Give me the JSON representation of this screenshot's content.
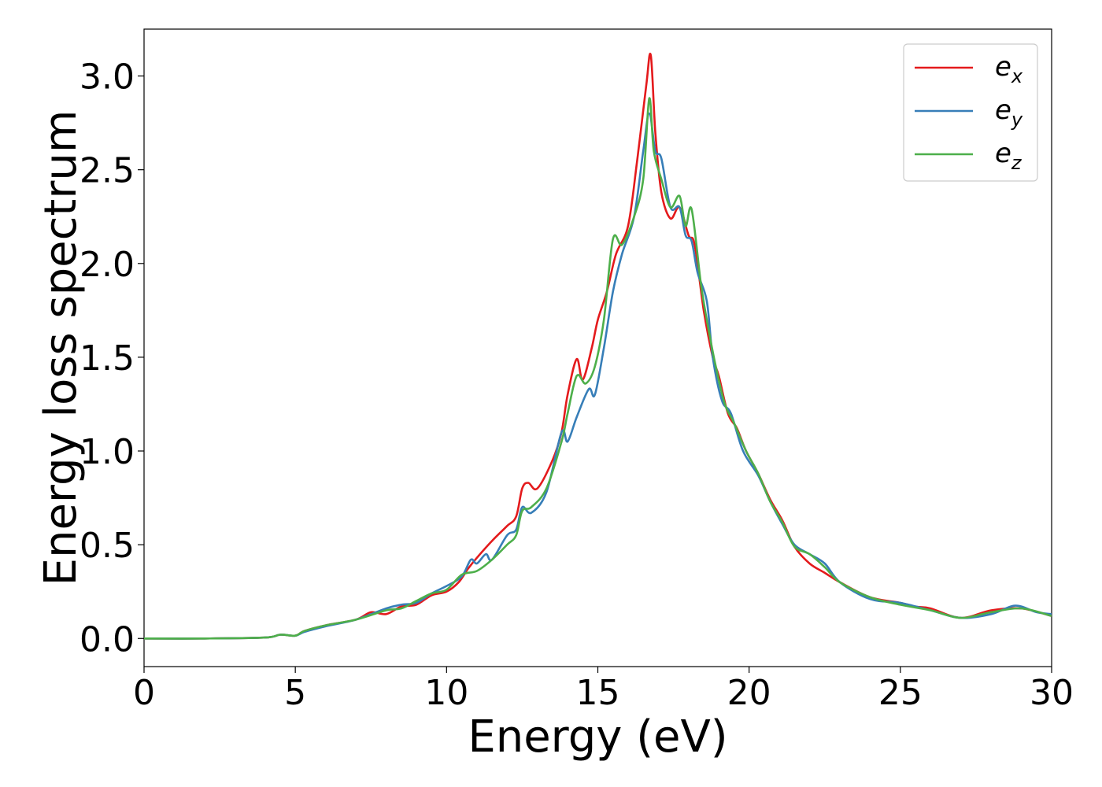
{
  "chart_data": {
    "type": "line",
    "title": "",
    "xlabel": "Energy (eV)",
    "ylabel": "Energy loss spectrum",
    "xlim": [
      0,
      30
    ],
    "ylim": [
      -0.15,
      3.25
    ],
    "xticks": [
      0,
      5,
      10,
      15,
      20,
      25,
      30
    ],
    "xtick_labels": [
      "0",
      "5",
      "10",
      "15",
      "20",
      "25",
      "30"
    ],
    "yticks": [
      0.0,
      0.5,
      1.0,
      1.5,
      2.0,
      2.5,
      3.0
    ],
    "ytick_labels": [
      "0.0",
      "0.5",
      "1.0",
      "1.5",
      "2.0",
      "2.5",
      "3.0"
    ],
    "grid": false,
    "legend": {
      "position": "top-right"
    },
    "series": [
      {
        "name": "e_x",
        "label_base": "e",
        "label_sub": "x",
        "color": "#e41a1c",
        "points": [
          [
            0,
            0
          ],
          [
            2,
            0
          ],
          [
            4,
            0.005
          ],
          [
            4.5,
            0.02
          ],
          [
            5,
            0.015
          ],
          [
            5.3,
            0.04
          ],
          [
            6,
            0.07
          ],
          [
            7,
            0.1
          ],
          [
            7.5,
            0.14
          ],
          [
            8,
            0.13
          ],
          [
            8.5,
            0.17
          ],
          [
            9,
            0.18
          ],
          [
            9.5,
            0.23
          ],
          [
            10,
            0.25
          ],
          [
            10.4,
            0.3
          ],
          [
            10.7,
            0.37
          ],
          [
            11,
            0.43
          ],
          [
            11.5,
            0.52
          ],
          [
            12,
            0.6
          ],
          [
            12.3,
            0.65
          ],
          [
            12.5,
            0.8
          ],
          [
            12.7,
            0.83
          ],
          [
            13,
            0.8
          ],
          [
            13.5,
            0.95
          ],
          [
            13.8,
            1.1
          ],
          [
            14,
            1.3
          ],
          [
            14.3,
            1.49
          ],
          [
            14.5,
            1.38
          ],
          [
            14.8,
            1.55
          ],
          [
            15,
            1.7
          ],
          [
            15.3,
            1.85
          ],
          [
            15.6,
            2.05
          ],
          [
            16,
            2.2
          ],
          [
            16.3,
            2.55
          ],
          [
            16.6,
            2.95
          ],
          [
            16.75,
            3.11
          ],
          [
            16.9,
            2.7
          ],
          [
            17.1,
            2.38
          ],
          [
            17.4,
            2.24
          ],
          [
            17.7,
            2.3
          ],
          [
            18,
            2.15
          ],
          [
            18.2,
            2.1
          ],
          [
            18.5,
            1.75
          ],
          [
            18.8,
            1.5
          ],
          [
            19,
            1.4
          ],
          [
            19.3,
            1.2
          ],
          [
            19.6,
            1.12
          ],
          [
            19.9,
            1.0
          ],
          [
            20.3,
            0.88
          ],
          [
            20.7,
            0.74
          ],
          [
            21.1,
            0.63
          ],
          [
            21.5,
            0.49
          ],
          [
            22,
            0.4
          ],
          [
            22.5,
            0.35
          ],
          [
            23,
            0.3
          ],
          [
            24,
            0.22
          ],
          [
            25,
            0.19
          ],
          [
            25.5,
            0.17
          ],
          [
            26,
            0.16
          ],
          [
            27,
            0.11
          ],
          [
            28,
            0.15
          ],
          [
            29,
            0.16
          ],
          [
            30,
            0.12
          ]
        ]
      },
      {
        "name": "e_y",
        "label_base": "e",
        "label_sub": "y",
        "color": "#377eb8",
        "points": [
          [
            0,
            0
          ],
          [
            2,
            0
          ],
          [
            4,
            0.005
          ],
          [
            4.5,
            0.02
          ],
          [
            5,
            0.015
          ],
          [
            5.3,
            0.035
          ],
          [
            6,
            0.065
          ],
          [
            7,
            0.1
          ],
          [
            8,
            0.16
          ],
          [
            8.5,
            0.18
          ],
          [
            9,
            0.19
          ],
          [
            9.5,
            0.24
          ],
          [
            10,
            0.28
          ],
          [
            10.5,
            0.33
          ],
          [
            10.8,
            0.42
          ],
          [
            11,
            0.4
          ],
          [
            11.3,
            0.45
          ],
          [
            11.5,
            0.42
          ],
          [
            12,
            0.55
          ],
          [
            12.3,
            0.58
          ],
          [
            12.5,
            0.7
          ],
          [
            12.8,
            0.67
          ],
          [
            13.3,
            0.78
          ],
          [
            13.8,
            1.1
          ],
          [
            14,
            1.05
          ],
          [
            14.3,
            1.18
          ],
          [
            14.7,
            1.33
          ],
          [
            14.9,
            1.3
          ],
          [
            15.2,
            1.55
          ],
          [
            15.5,
            1.85
          ],
          [
            15.8,
            2.05
          ],
          [
            16.2,
            2.25
          ],
          [
            16.5,
            2.6
          ],
          [
            16.7,
            2.8
          ],
          [
            16.9,
            2.6
          ],
          [
            17.1,
            2.56
          ],
          [
            17.4,
            2.3
          ],
          [
            17.7,
            2.3
          ],
          [
            17.9,
            2.15
          ],
          [
            18.1,
            2.12
          ],
          [
            18.3,
            1.95
          ],
          [
            18.6,
            1.8
          ],
          [
            18.8,
            1.5
          ],
          [
            19.1,
            1.27
          ],
          [
            19.4,
            1.2
          ],
          [
            19.8,
            1.0
          ],
          [
            20.3,
            0.87
          ],
          [
            20.7,
            0.73
          ],
          [
            21.1,
            0.61
          ],
          [
            21.5,
            0.5
          ],
          [
            22,
            0.45
          ],
          [
            22.5,
            0.4
          ],
          [
            23,
            0.3
          ],
          [
            24,
            0.21
          ],
          [
            25,
            0.19
          ],
          [
            26,
            0.15
          ],
          [
            27,
            0.11
          ],
          [
            28,
            0.13
          ],
          [
            28.8,
            0.175
          ],
          [
            29.5,
            0.14
          ],
          [
            30,
            0.13
          ]
        ]
      },
      {
        "name": "e_z",
        "label_base": "e",
        "label_sub": "z",
        "color": "#4daf4a",
        "points": [
          [
            0,
            0
          ],
          [
            2,
            0
          ],
          [
            4,
            0.005
          ],
          [
            4.5,
            0.02
          ],
          [
            5,
            0.015
          ],
          [
            5.3,
            0.04
          ],
          [
            6,
            0.07
          ],
          [
            7,
            0.1
          ],
          [
            8,
            0.15
          ],
          [
            8.5,
            0.16
          ],
          [
            9,
            0.2
          ],
          [
            9.5,
            0.24
          ],
          [
            10,
            0.26
          ],
          [
            10.5,
            0.34
          ],
          [
            11,
            0.36
          ],
          [
            11.5,
            0.42
          ],
          [
            12,
            0.5
          ],
          [
            12.3,
            0.55
          ],
          [
            12.5,
            0.68
          ],
          [
            12.8,
            0.7
          ],
          [
            13.3,
            0.8
          ],
          [
            13.8,
            1.05
          ],
          [
            14,
            1.2
          ],
          [
            14.3,
            1.4
          ],
          [
            14.6,
            1.36
          ],
          [
            14.9,
            1.45
          ],
          [
            15.2,
            1.7
          ],
          [
            15.5,
            2.13
          ],
          [
            15.8,
            2.1
          ],
          [
            16.2,
            2.25
          ],
          [
            16.5,
            2.45
          ],
          [
            16.7,
            2.88
          ],
          [
            16.85,
            2.6
          ],
          [
            17.1,
            2.45
          ],
          [
            17.4,
            2.3
          ],
          [
            17.7,
            2.36
          ],
          [
            17.9,
            2.2
          ],
          [
            18.1,
            2.29
          ],
          [
            18.4,
            1.9
          ],
          [
            18.6,
            1.7
          ],
          [
            18.9,
            1.45
          ],
          [
            19.2,
            1.25
          ],
          [
            19.5,
            1.15
          ],
          [
            19.9,
            1.0
          ],
          [
            20.3,
            0.88
          ],
          [
            20.7,
            0.73
          ],
          [
            21.1,
            0.62
          ],
          [
            21.5,
            0.49
          ],
          [
            22,
            0.45
          ],
          [
            22.5,
            0.38
          ],
          [
            23,
            0.3
          ],
          [
            24,
            0.22
          ],
          [
            25,
            0.18
          ],
          [
            26,
            0.15
          ],
          [
            27,
            0.11
          ],
          [
            28,
            0.14
          ],
          [
            29,
            0.16
          ],
          [
            30,
            0.12
          ]
        ]
      }
    ]
  }
}
